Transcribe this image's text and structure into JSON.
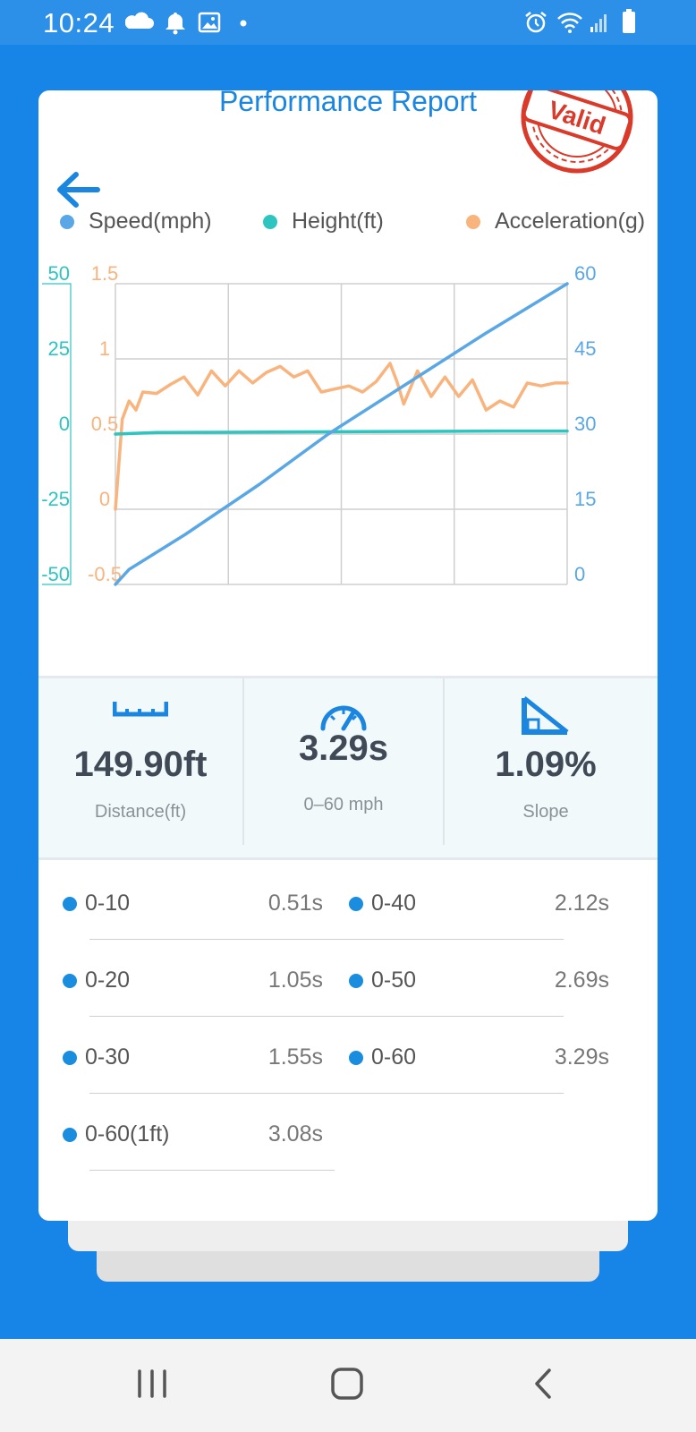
{
  "status": {
    "time": "10:24"
  },
  "report": {
    "title": "Performance Report",
    "stamp_text": "Valid",
    "stamp_color": "#d93a2a"
  },
  "legend": [
    {
      "label": "Speed(mph)",
      "color": "#5aa7e6"
    },
    {
      "label": "Height(ft)",
      "color": "#2ec4c0"
    },
    {
      "label": "Acceleration(g)",
      "color": "#f9b47e"
    }
  ],
  "chart_data": {
    "type": "line",
    "axes": {
      "height_ticks": [
        "50",
        "25",
        "0",
        "-25",
        "-50"
      ],
      "accel_ticks": [
        "1.5",
        "1",
        "0.5",
        "0",
        "-0.5"
      ],
      "speed_ticks": [
        "60",
        "45",
        "30",
        "15",
        "0"
      ],
      "height_range": [
        -50,
        50
      ],
      "accel_range": [
        -0.5,
        1.5
      ],
      "speed_range": [
        0,
        60
      ],
      "x_range": [
        0,
        3.29
      ]
    },
    "grid": true,
    "series": [
      {
        "name": "Speed(mph)",
        "axis": "right",
        "color": "#5aa7e6",
        "x": [
          0,
          0.1,
          0.51,
          1.05,
          1.55,
          2.12,
          2.69,
          3.29
        ],
        "y": [
          0,
          3,
          10,
          20,
          30,
          40,
          50,
          60
        ]
      },
      {
        "name": "Height(ft)",
        "axis": "left",
        "color": "#2ec4c0",
        "x": [
          0,
          0.3,
          0.8,
          1.3,
          1.8,
          2.3,
          2.8,
          3.29
        ],
        "y": [
          0,
          0.5,
          0.6,
          0.7,
          0.8,
          0.9,
          1.0,
          1.0
        ]
      },
      {
        "name": "Acceleration(g)",
        "axis": "left2",
        "color": "#f9b47e",
        "x": [
          0,
          0.05,
          0.1,
          0.15,
          0.2,
          0.3,
          0.4,
          0.5,
          0.6,
          0.7,
          0.8,
          0.9,
          1.0,
          1.1,
          1.2,
          1.3,
          1.4,
          1.5,
          1.6,
          1.7,
          1.8,
          1.9,
          2.0,
          2.05,
          2.1,
          2.2,
          2.3,
          2.4,
          2.5,
          2.6,
          2.7,
          2.8,
          2.9,
          3.0,
          3.1,
          3.2,
          3.29
        ],
        "y": [
          0,
          0.6,
          0.72,
          0.66,
          0.78,
          0.77,
          0.83,
          0.88,
          0.76,
          0.92,
          0.82,
          0.92,
          0.84,
          0.91,
          0.95,
          0.88,
          0.92,
          0.78,
          0.8,
          0.82,
          0.78,
          0.85,
          0.97,
          0.85,
          0.7,
          0.92,
          0.75,
          0.88,
          0.75,
          0.86,
          0.66,
          0.72,
          0.68,
          0.84,
          0.82,
          0.84,
          0.84
        ]
      }
    ]
  },
  "stats": [
    {
      "value": "149.90ft",
      "label": "Distance(ft)",
      "icon": "ruler-icon"
    },
    {
      "value": "3.29s",
      "label": "0–60 mph",
      "icon": "speedometer-icon"
    },
    {
      "value": "1.09%",
      "label": "Slope",
      "icon": "slope-icon"
    }
  ],
  "times": [
    {
      "label": "0-10",
      "value": "0.51s"
    },
    {
      "label": "0-40",
      "value": "2.12s"
    },
    {
      "label": "0-20",
      "value": "1.05s"
    },
    {
      "label": "0-50",
      "value": "2.69s"
    },
    {
      "label": "0-30",
      "value": "1.55s"
    },
    {
      "label": "0-60",
      "value": "3.29s"
    },
    {
      "label": "0-60(1ft)",
      "value": "3.08s"
    }
  ],
  "accent_color": "#1685e7"
}
